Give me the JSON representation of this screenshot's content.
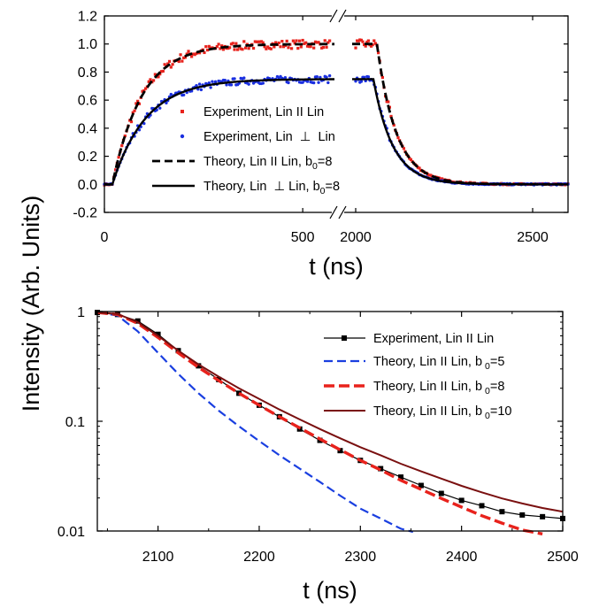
{
  "figure": {
    "ylabel": "Intensity (Arb. Units)"
  },
  "chart_data": [
    {
      "type": "line",
      "xlabel": "t (ns)",
      "ylim": [
        -0.2,
        1.2
      ],
      "yticks": [
        "-0.2",
        "0.0",
        "0.2",
        "0.4",
        "0.6",
        "0.8",
        "1.0",
        "1.2"
      ],
      "xticks": [
        "0",
        "500",
        "2000",
        "2500"
      ],
      "x_segments": [
        [
          0,
          580
        ],
        [
          1960,
          2600
        ]
      ],
      "legend_position": "bottom-center",
      "series": [
        {
          "name": "Experiment, Lin II Lin",
          "style": "scatter-square",
          "color": "#e8221c",
          "params": {
            "plateau": 1.0,
            "rise_tau": 75,
            "delay": 20,
            "off": 2060,
            "decay_tau": 55,
            "noise": 0.03
          }
        },
        {
          "name": "Experiment, Lin ⊥ Lin",
          "legend_prefix": "Experiment, Lin ",
          "legend_symbol": "⊥",
          "legend_suffix": " Lin",
          "style": "scatter-circle",
          "color": "#1a2fe0",
          "params": {
            "plateau": 0.75,
            "rise_tau": 85,
            "delay": 20,
            "off": 2050,
            "decay_tau": 55,
            "noise": 0.025
          }
        },
        {
          "name": "Theory, Lin II Lin, b0=8",
          "legend_prefix": "Theory, Lin II Lin, b",
          "legend_sub": "0",
          "legend_suffix": "=8",
          "style": "dashed",
          "color": "#000000",
          "params": {
            "plateau": 1.0,
            "rise_tau": 75,
            "delay": 20,
            "off": 2060,
            "decay_tau": 55
          }
        },
        {
          "name": "Theory, Lin ⊥ Lin, b0=8",
          "legend_prefix": "Theory, Lin ",
          "legend_symbol": "⊥",
          "legend_mid": " Lin, b",
          "legend_sub": "0",
          "legend_suffix": "=8",
          "style": "solid",
          "color": "#000000",
          "params": {
            "plateau": 0.75,
            "rise_tau": 85,
            "delay": 20,
            "off": 2050,
            "decay_tau": 55
          }
        }
      ]
    },
    {
      "type": "line",
      "xlabel": "t (ns)",
      "yscale": "log",
      "xlim": [
        2040,
        2500
      ],
      "ylim": [
        0.01,
        1
      ],
      "xticks": [
        "2100",
        "2200",
        "2300",
        "2400",
        "2500"
      ],
      "yticks": [
        "1",
        "0.1",
        "0.01"
      ],
      "legend_position": "top-right",
      "series": [
        {
          "name": "Experiment, Lin II Lin",
          "style": "line-square",
          "color": "#000000",
          "points": [
            [
              2040,
              0.98
            ],
            [
              2060,
              0.94
            ],
            [
              2080,
              0.82
            ],
            [
              2100,
              0.62
            ],
            [
              2120,
              0.44
            ],
            [
              2140,
              0.32
            ],
            [
              2160,
              0.24
            ],
            [
              2180,
              0.18
            ],
            [
              2200,
              0.14
            ],
            [
              2220,
              0.11
            ],
            [
              2240,
              0.085
            ],
            [
              2260,
              0.067
            ],
            [
              2280,
              0.054
            ],
            [
              2300,
              0.044
            ],
            [
              2320,
              0.037
            ],
            [
              2340,
              0.031
            ],
            [
              2360,
              0.026
            ],
            [
              2380,
              0.022
            ],
            [
              2400,
              0.019
            ],
            [
              2420,
              0.017
            ],
            [
              2440,
              0.015
            ],
            [
              2460,
              0.014
            ],
            [
              2480,
              0.0135
            ],
            [
              2500,
              0.013
            ]
          ]
        },
        {
          "name": "Theory, Lin II Lin, b0=5",
          "legend_prefix": "Theory, Lin II Lin, b",
          "legend_sub": "0",
          "legend_suffix": "=5",
          "style": "dashed",
          "color": "#1a3fe0",
          "points": [
            [
              2040,
              0.98
            ],
            [
              2060,
              0.92
            ],
            [
              2080,
              0.66
            ],
            [
              2100,
              0.42
            ],
            [
              2120,
              0.27
            ],
            [
              2140,
              0.18
            ],
            [
              2160,
              0.125
            ],
            [
              2180,
              0.09
            ],
            [
              2200,
              0.066
            ],
            [
              2220,
              0.049
            ],
            [
              2240,
              0.037
            ],
            [
              2260,
              0.028
            ],
            [
              2280,
              0.021
            ],
            [
              2300,
              0.016
            ],
            [
              2320,
              0.013
            ],
            [
              2340,
              0.0105
            ],
            [
              2352,
              0.0098
            ]
          ]
        },
        {
          "name": "Theory, Lin II Lin, b0=8",
          "legend_prefix": "Theory, Lin II Lin, b",
          "legend_sub": "0",
          "legend_suffix": "=8",
          "style": "dashed-thick",
          "color": "#e8221c",
          "points": [
            [
              2040,
              0.98
            ],
            [
              2060,
              0.94
            ],
            [
              2080,
              0.78
            ],
            [
              2100,
              0.58
            ],
            [
              2120,
              0.42
            ],
            [
              2140,
              0.31
            ],
            [
              2160,
              0.235
            ],
            [
              2180,
              0.18
            ],
            [
              2200,
              0.14
            ],
            [
              2220,
              0.11
            ],
            [
              2240,
              0.087
            ],
            [
              2260,
              0.069
            ],
            [
              2280,
              0.055
            ],
            [
              2300,
              0.044
            ],
            [
              2320,
              0.036
            ],
            [
              2340,
              0.029
            ],
            [
              2360,
              0.024
            ],
            [
              2380,
              0.0198
            ],
            [
              2400,
              0.0165
            ],
            [
              2420,
              0.0138
            ],
            [
              2440,
              0.0118
            ],
            [
              2460,
              0.0102
            ],
            [
              2480,
              0.0094
            ]
          ]
        },
        {
          "name": "Theory, Lin II Lin, b0=10",
          "legend_prefix": "Theory, Lin II Lin, b",
          "legend_sub": "0",
          "legend_suffix": "=10",
          "style": "solid",
          "color": "#7a1010",
          "points": [
            [
              2040,
              0.98
            ],
            [
              2060,
              0.95
            ],
            [
              2080,
              0.8
            ],
            [
              2100,
              0.6
            ],
            [
              2120,
              0.44
            ],
            [
              2140,
              0.33
            ],
            [
              2160,
              0.255
            ],
            [
              2180,
              0.2
            ],
            [
              2200,
              0.16
            ],
            [
              2220,
              0.128
            ],
            [
              2240,
              0.104
            ],
            [
              2260,
              0.085
            ],
            [
              2280,
              0.07
            ],
            [
              2300,
              0.058
            ],
            [
              2320,
              0.049
            ],
            [
              2340,
              0.041
            ],
            [
              2360,
              0.035
            ],
            [
              2380,
              0.03
            ],
            [
              2400,
              0.0258
            ],
            [
              2420,
              0.0225
            ],
            [
              2440,
              0.0198
            ],
            [
              2460,
              0.0178
            ],
            [
              2480,
              0.0162
            ],
            [
              2500,
              0.015
            ]
          ]
        }
      ]
    }
  ]
}
